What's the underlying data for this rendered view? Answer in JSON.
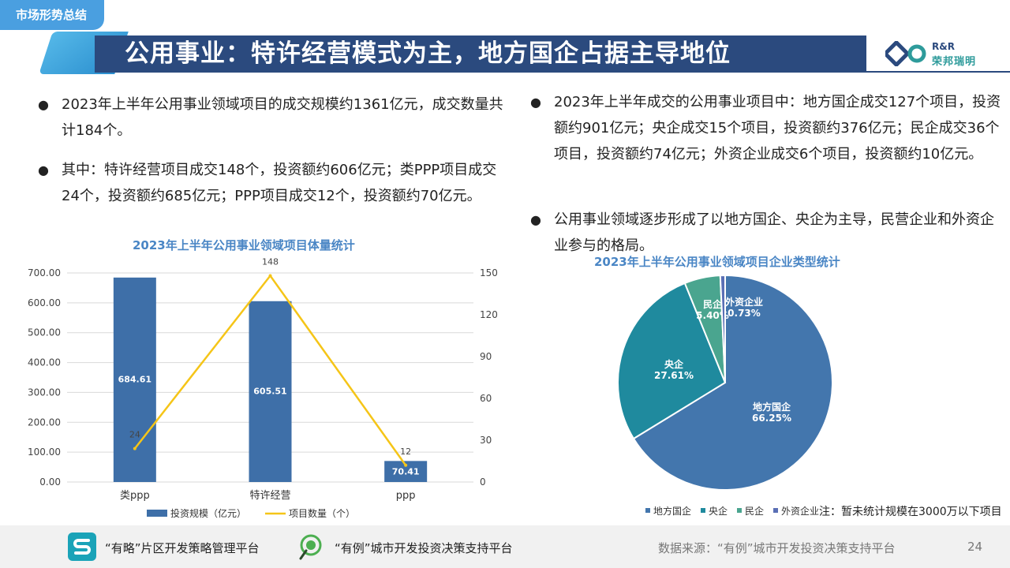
{
  "section_tag": "市场形势总结",
  "title": "公用事业：特许经营模式为主，地方国企占据主导地位",
  "logo": {
    "line1": "R&R",
    "line2": "荣邦瑞明"
  },
  "bullets_left": [
    "2023年上半年公用事业领域项目的成交规模约1361亿元，成交数量共计184个。",
    "其中：特许经营项目成交148个，投资额约606亿元；类PPP项目成交24个，投资额约685亿元；PPP项目成交12个，投资额约70亿元。"
  ],
  "bullets_right": [
    "2023年上半年成交的公用事业项目中：地方国企成交127个项目，投资额约901亿元；央企成交15个项目，投资额约376亿元；民企成交36个项目，投资额约74亿元；外资企业成交6个项目，投资额约10亿元。",
    "公用事业领域逐步形成了以地方国企、央企为主导，民营企业和外资企业参与的格局。"
  ],
  "chart_data": [
    {
      "type": "bar",
      "title": "2023年上半年公用事业领域项目体量统计",
      "categories": [
        "类ppp",
        "特许经营",
        "ppp"
      ],
      "series": [
        {
          "name": "投资规模（亿元）",
          "type": "bar",
          "axis": "left",
          "values": [
            684.61,
            605.51,
            70.41
          ],
          "labels": [
            "684.61",
            "605.51",
            "70.41"
          ],
          "color": "#3e6fa8"
        },
        {
          "name": "项目数量（个）",
          "type": "line",
          "axis": "right",
          "values": [
            24,
            148,
            12
          ],
          "labels": [
            "24",
            "148",
            "12"
          ],
          "color": "#f5c518"
        }
      ],
      "y_left": {
        "ticks": [
          "0.00",
          "100.00",
          "200.00",
          "300.00",
          "400.00",
          "500.00",
          "600.00",
          "700.00"
        ],
        "ylim": [
          0,
          700
        ]
      },
      "y_right": {
        "ticks": [
          "0",
          "30",
          "60",
          "90",
          "120",
          "150"
        ],
        "ylim": [
          0,
          150
        ]
      }
    },
    {
      "type": "pie",
      "title": "2023年上半年公用事业领域项目企业类型统计",
      "slices": [
        {
          "name": "地方国企",
          "value": 66.25,
          "label": "66.25%",
          "color": "#4376ad"
        },
        {
          "name": "央企",
          "value": 27.61,
          "label": "27.61%",
          "color": "#1f8a9e"
        },
        {
          "name": "民企",
          "value": 5.4,
          "label": "5.40%",
          "color": "#4aa58f"
        },
        {
          "name": "外资企业",
          "value": 0.73,
          "label": "0.73%",
          "color": "#5a6fb5"
        }
      ]
    }
  ],
  "note": "注：暂未统计规模在3000万以下项目",
  "footer": {
    "platform1": "“有略”片区开发策略管理平台",
    "platform2": "“有例”城市开发投资决策支持平台",
    "source": "数据来源：“有例”城市开发投资决策支持平台",
    "page": "24"
  }
}
